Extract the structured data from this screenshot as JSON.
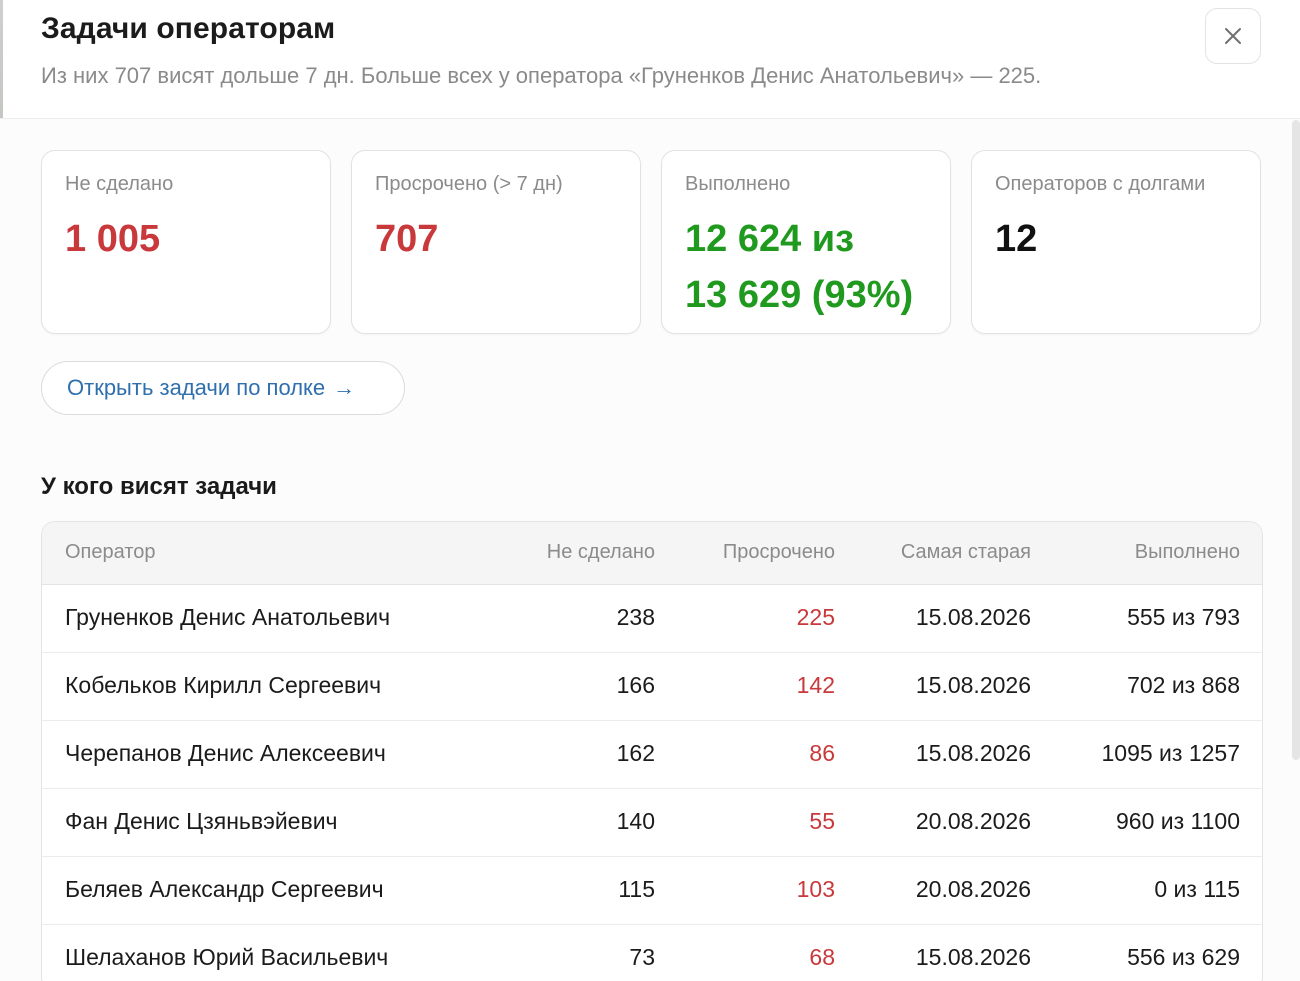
{
  "header": {
    "title": "Задачи операторам",
    "subtitle": "Из них 707 висят дольше 7 дн. Больше всех у оператора «Груненков Денис Анатольевич» — 225."
  },
  "close_icon": "close-icon",
  "stats": [
    {
      "label": "Не сделано",
      "value": "1 005",
      "color": "#c9383a"
    },
    {
      "label": "Просрочено (> 7 дн)",
      "value": "707",
      "color": "#c9383a"
    },
    {
      "label": "Выполнено",
      "value": "12 624 из\n13 629 (93%)",
      "color": "#1f9a1f"
    },
    {
      "label": "Операторов с долгами",
      "value": "12",
      "color": "#111111"
    }
  ],
  "open_button": {
    "label": "Открыть задачи по полке",
    "arrow": "→"
  },
  "section_title": "У кого висят задачи",
  "table": {
    "columns": [
      "Оператор",
      "Не сделано",
      "Просрочено",
      "Самая старая",
      "Выполнено"
    ],
    "rows": [
      {
        "operator": "Груненков Денис Анатольевич",
        "not_done": "238",
        "overdue": "225",
        "oldest": "15.08.2026",
        "done": "555 из 793"
      },
      {
        "operator": "Кобельков Кирилл Сергеевич",
        "not_done": "166",
        "overdue": "142",
        "oldest": "15.08.2026",
        "done": "702 из 868"
      },
      {
        "operator": "Черепанов Денис Алексеевич",
        "not_done": "162",
        "overdue": "86",
        "oldest": "15.08.2026",
        "done": "1095 из 1257"
      },
      {
        "operator": "Фан Денис Цзяньвэйевич",
        "not_done": "140",
        "overdue": "55",
        "oldest": "20.08.2026",
        "done": "960 из 1100"
      },
      {
        "operator": "Беляев Александр Сергеевич",
        "not_done": "115",
        "overdue": "103",
        "oldest": "20.08.2026",
        "done": "0 из 115"
      },
      {
        "operator": "Шелаханов Юрий Васильевич",
        "not_done": "73",
        "overdue": "68",
        "oldest": "15.08.2026",
        "done": "556 из 629"
      }
    ]
  }
}
